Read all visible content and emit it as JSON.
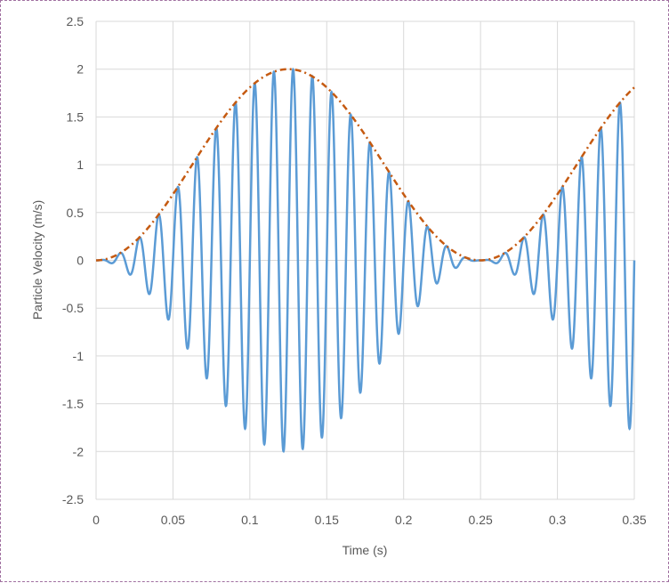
{
  "chart_data": {
    "type": "line",
    "title": "",
    "xlabel": "Time (s)",
    "ylabel": "Particle Velocity (m/s)",
    "xlim": [
      0,
      0.35
    ],
    "ylim": [
      -2.5,
      2.5
    ],
    "xticks": [
      "0",
      "0.05",
      "0.1",
      "0.15",
      "0.2",
      "0.25",
      "0.3",
      "0.35"
    ],
    "yticks": [
      "2.5",
      "2",
      "1.5",
      "1",
      "0.5",
      "0",
      "-0.5",
      "-1",
      "-1.5",
      "-2",
      "-2.5"
    ],
    "grid": true,
    "legend": "none",
    "series": [
      {
        "style": "solid",
        "color": "#5b9bd5",
        "description_values": {
          "envelope_peak": 2,
          "envelope_peak_time": 0.125,
          "envelope_zero_times": [
            0,
            0.25
          ],
          "oscillation_frequency_hz": 80
        }
      },
      {
        "style": "dash-dot",
        "color": "#c55a11",
        "description_values": {
          "peak": 2,
          "peak_time": 0.125,
          "zero_times": [
            0,
            0.25
          ],
          "value_at_0.35": 1.81
        }
      }
    ]
  }
}
